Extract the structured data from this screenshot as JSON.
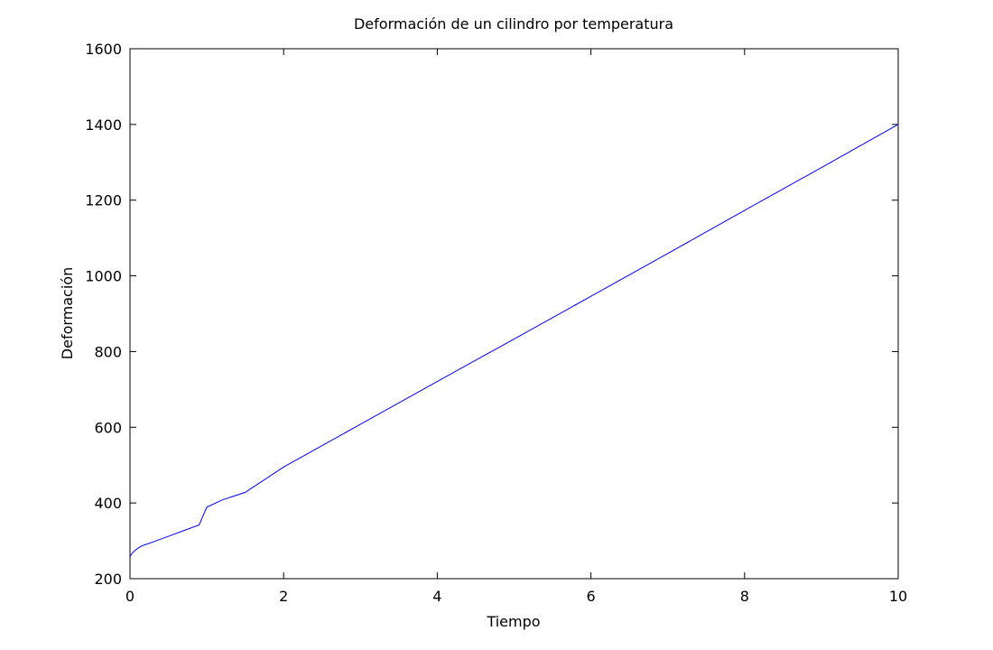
{
  "chart_data": {
    "type": "line",
    "title": "Deformación de un cilindro por temperatura",
    "xlabel": "Tiempo",
    "ylabel": "Deformación",
    "xlim": [
      0,
      10
    ],
    "ylim": [
      200,
      1600
    ],
    "xticks": [
      0,
      2,
      4,
      6,
      8,
      10
    ],
    "yticks": [
      200,
      400,
      600,
      800,
      1000,
      1200,
      1400,
      1600
    ],
    "grid": false,
    "series": [
      {
        "color": "#0000ff",
        "x": [
          0,
          0.02,
          0.05,
          0.1,
          0.15,
          0.2,
          0.3,
          0.5,
          0.7,
          0.9,
          1.0,
          1.2,
          1.5,
          2,
          3,
          4,
          4.4,
          5,
          6,
          7,
          8,
          9,
          10
        ],
        "y": [
          258,
          265,
          272,
          280,
          286,
          290,
          297,
          312,
          327,
          342,
          389,
          408,
          428,
          495,
          608,
          721,
          766,
          833,
          946,
          1059,
          1173,
          1286,
          1400
        ]
      }
    ]
  }
}
